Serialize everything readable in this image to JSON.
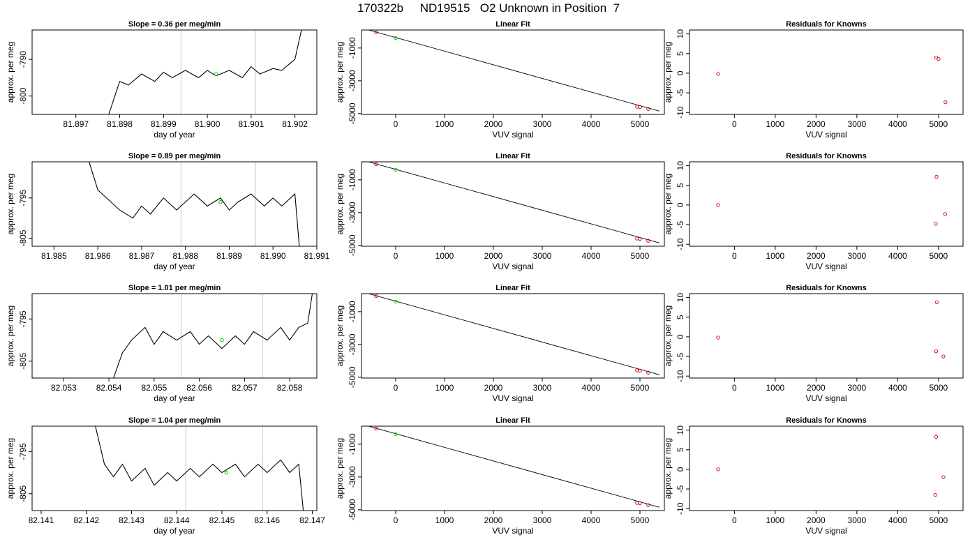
{
  "figure_title": "170322b     ND19515   O2 Unknown in Position  7",
  "chart_data": [
    {
      "type": "line",
      "title": "Slope =  0.36  per meg/min",
      "xlabel": "day of year",
      "ylabel": "approx. per meg",
      "xlim": [
        81.896,
        81.9025
      ],
      "ylim": [
        -805,
        -782
      ],
      "xticks": [
        "81.897",
        "81.898",
        "81.899",
        "81.900",
        "81.901",
        "81.902"
      ],
      "yticks": [
        "-790",
        "-800"
      ],
      "vlines": [
        81.8994,
        81.9011
      ],
      "marker": {
        "x": 81.9002,
        "y": -794,
        "color": "#00cc00"
      },
      "series": [
        {
          "color": "#000000",
          "x": [
            81.89775,
            81.898,
            81.8982,
            81.8985,
            81.8988,
            81.899,
            81.8992,
            81.8995,
            81.8998,
            81.9,
            81.9002,
            81.9005,
            81.9008,
            81.901,
            81.9012,
            81.9015,
            81.9017,
            81.9019,
            81.902,
            81.90215
          ],
          "y": [
            -805,
            -796,
            -797,
            -794,
            -796,
            -793.5,
            -795,
            -793,
            -795,
            -793,
            -794.5,
            -793,
            -795,
            -792,
            -794,
            -792.5,
            -793,
            -791,
            -790,
            -782
          ]
        }
      ]
    },
    {
      "type": "scatter",
      "title": "Linear Fit",
      "xlabel": "VUV signal",
      "ylabel": "approx. per meg",
      "xlim": [
        -700,
        5500
      ],
      "ylim": [
        -5050,
        100
      ],
      "xticks": [
        "0",
        "1000",
        "2000",
        "3000",
        "4000",
        "5000"
      ],
      "yticks": [
        "-1000",
        "-3000",
        "-5000"
      ],
      "fit_line": {
        "x": [
          -650,
          5400
        ],
        "y": [
          180,
          -4850
        ]
      },
      "series": [
        {
          "name": "",
          "color": "#cc0000",
          "x": [
            -400,
            4940,
            5000,
            5170
          ],
          "y": [
            -50,
            -4580,
            -4600,
            -4720
          ]
        },
        {
          "name": "",
          "color": "#00cc00",
          "x": [
            0
          ],
          "y": [
            -390
          ]
        }
      ]
    },
    {
      "type": "scatter",
      "title": "Residuals for Knowns",
      "xlabel": "VUV signal",
      "ylabel": "approx. per meg",
      "xlim": [
        -1100,
        5600
      ],
      "ylim": [
        -10.5,
        11
      ],
      "xticks": [
        "0",
        "1000",
        "2000",
        "3000",
        "4000",
        "5000"
      ],
      "yticks": [
        "-10",
        "-5",
        "0",
        "5",
        "10"
      ],
      "series": [
        {
          "color": "#cc0000",
          "x": [
            -400,
            4940,
            5000,
            5170
          ],
          "y": [
            -0.2,
            4,
            3.6,
            -7.4
          ]
        }
      ]
    },
    {
      "type": "line",
      "title": "Slope =  0.89  per meg/min",
      "xlabel": "day of year",
      "ylabel": "approx. per meg",
      "xlim": [
        81.9845,
        81.991
      ],
      "ylim": [
        -807,
        -786
      ],
      "xticks": [
        "81.985",
        "81.986",
        "81.987",
        "81.988",
        "81.989",
        "81.990",
        "81.991"
      ],
      "yticks": [
        "-795",
        "-805"
      ],
      "vlines": [
        81.9879,
        81.9896
      ],
      "marker": {
        "x": 81.9888,
        "y": -796,
        "color": "#00cc00"
      },
      "series": [
        {
          "color": "#000000",
          "x": [
            81.9858,
            81.986,
            81.9862,
            81.9865,
            81.9868,
            81.987,
            81.9872,
            81.9875,
            81.9878,
            81.988,
            81.9882,
            81.9885,
            81.9888,
            81.989,
            81.9892,
            81.9895,
            81.9898,
            81.99,
            81.9902,
            81.9905,
            81.9906
          ],
          "y": [
            -786,
            -793,
            -795,
            -798,
            -800,
            -797,
            -799,
            -795,
            -798,
            -796,
            -794,
            -797,
            -795,
            -798,
            -796,
            -794,
            -797,
            -795,
            -797,
            -794,
            -807
          ]
        }
      ]
    },
    {
      "type": "scatter",
      "title": "Linear Fit",
      "xlabel": "VUV signal",
      "ylabel": "approx. per meg",
      "xlim": [
        -700,
        5500
      ],
      "ylim": [
        -5050,
        100
      ],
      "xticks": [
        "0",
        "1000",
        "2000",
        "3000",
        "4000",
        "5000"
      ],
      "yticks": [
        "-1000",
        "-3000",
        "-5000"
      ],
      "fit_line": {
        "x": [
          -650,
          5400
        ],
        "y": [
          180,
          -4850
        ]
      },
      "series": [
        {
          "name": "",
          "color": "#cc0000",
          "x": [
            -400,
            4940,
            5000,
            5170
          ],
          "y": [
            -50,
            -4580,
            -4600,
            -4720
          ]
        },
        {
          "name": "",
          "color": "#00cc00",
          "x": [
            0
          ],
          "y": [
            -390
          ]
        }
      ]
    },
    {
      "type": "scatter",
      "title": "Residuals for Knowns",
      "xlabel": "VUV signal",
      "ylabel": "approx. per meg",
      "xlim": [
        -1100,
        5600
      ],
      "ylim": [
        -10.5,
        11
      ],
      "xticks": [
        "0",
        "1000",
        "2000",
        "3000",
        "4000",
        "5000"
      ],
      "yticks": [
        "-10",
        "-5",
        "0",
        "5",
        "10"
      ],
      "series": [
        {
          "color": "#cc0000",
          "x": [
            -400,
            4950,
            4930,
            5160
          ],
          "y": [
            0,
            7.2,
            -4.8,
            -2.3
          ]
        }
      ]
    },
    {
      "type": "line",
      "title": "Slope =  1.01  per meg/min",
      "xlabel": "day of year",
      "ylabel": "approx. per meg",
      "xlim": [
        82.0523,
        82.0586
      ],
      "ylim": [
        -809,
        -789
      ],
      "xticks": [
        "82.053",
        "82.054",
        "82.055",
        "82.056",
        "82.057",
        "82.058"
      ],
      "yticks": [
        "-795",
        "-805"
      ],
      "vlines": [
        82.0556,
        82.0574
      ],
      "marker": {
        "x": 82.0565,
        "y": -800,
        "color": "#00cc00"
      },
      "series": [
        {
          "color": "#000000",
          "x": [
            82.0541,
            82.0543,
            82.0545,
            82.0548,
            82.055,
            82.0552,
            82.0555,
            82.0558,
            82.056,
            82.0562,
            82.0565,
            82.0568,
            82.057,
            82.0572,
            82.0575,
            82.0578,
            82.058,
            82.0582,
            82.0584,
            82.0585
          ],
          "y": [
            -809,
            -803,
            -800,
            -797,
            -801,
            -798,
            -800,
            -798,
            -801,
            -799,
            -802,
            -799,
            -801,
            -798,
            -800,
            -797,
            -800,
            -797,
            -796,
            -789
          ]
        }
      ]
    },
    {
      "type": "scatter",
      "title": "Linear Fit",
      "xlabel": "VUV signal",
      "ylabel": "approx. per meg",
      "xlim": [
        -700,
        5500
      ],
      "ylim": [
        -5050,
        100
      ],
      "xticks": [
        "0",
        "1000",
        "2000",
        "3000",
        "4000",
        "5000"
      ],
      "yticks": [
        "-1000",
        "-3000",
        "-5000"
      ],
      "fit_line": {
        "x": [
          -650,
          5400
        ],
        "y": [
          180,
          -4850
        ]
      },
      "series": [
        {
          "name": "",
          "color": "#cc0000",
          "x": [
            -400,
            4940,
            5000,
            5170
          ],
          "y": [
            -50,
            -4580,
            -4600,
            -4720
          ]
        },
        {
          "name": "",
          "color": "#00cc00",
          "x": [
            0
          ],
          "y": [
            -390
          ]
        }
      ]
    },
    {
      "type": "scatter",
      "title": "Residuals for Knowns",
      "xlabel": "VUV signal",
      "ylabel": "approx. per meg",
      "xlim": [
        -1100,
        5600
      ],
      "ylim": [
        -10.5,
        11
      ],
      "xticks": [
        "0",
        "1000",
        "2000",
        "3000",
        "4000",
        "5000"
      ],
      "yticks": [
        "-10",
        "-5",
        "0",
        "5",
        "10"
      ],
      "series": [
        {
          "color": "#cc0000",
          "x": [
            -400,
            4960,
            4940,
            5120
          ],
          "y": [
            -0.2,
            8.8,
            -3.7,
            -5
          ]
        }
      ]
    },
    {
      "type": "line",
      "title": "Slope =  1.04  per meg/min",
      "xlabel": "day of year",
      "ylabel": "approx. per meg",
      "xlim": [
        82.1408,
        82.1471
      ],
      "ylim": [
        -809,
        -789
      ],
      "xticks": [
        "82.141",
        "82.142",
        "82.143",
        "82.144",
        "82.145",
        "82.146",
        "82.147"
      ],
      "yticks": [
        "-795",
        "-805"
      ],
      "vlines": [
        82.1442,
        82.1459
      ],
      "marker": {
        "x": 82.1451,
        "y": -800,
        "color": "#00cc00"
      },
      "series": [
        {
          "color": "#000000",
          "x": [
            82.1422,
            82.1424,
            82.1426,
            82.1428,
            82.143,
            82.1433,
            82.1435,
            82.1438,
            82.144,
            82.1443,
            82.1445,
            82.1448,
            82.145,
            82.1453,
            82.1455,
            82.1458,
            82.146,
            82.1463,
            82.1465,
            82.1467,
            82.1468
          ],
          "y": [
            -789,
            -798,
            -801,
            -798,
            -802,
            -799,
            -803,
            -800,
            -802,
            -799,
            -801,
            -798,
            -800,
            -798,
            -801,
            -798,
            -800,
            -797,
            -800,
            -798,
            -809
          ]
        }
      ]
    },
    {
      "type": "scatter",
      "title": "Linear Fit",
      "xlabel": "VUV signal",
      "ylabel": "approx. per meg",
      "xlim": [
        -700,
        5500
      ],
      "ylim": [
        -5050,
        100
      ],
      "xticks": [
        "0",
        "1000",
        "2000",
        "3000",
        "4000",
        "5000"
      ],
      "yticks": [
        "-1000",
        "-3000",
        "-5000"
      ],
      "fit_line": {
        "x": [
          -650,
          5400
        ],
        "y": [
          180,
          -4850
        ]
      },
      "series": [
        {
          "name": "",
          "color": "#cc0000",
          "x": [
            -400,
            4940,
            5000,
            5170
          ],
          "y": [
            -50,
            -4580,
            -4600,
            -4720
          ]
        },
        {
          "name": "",
          "color": "#00cc00",
          "x": [
            0
          ],
          "y": [
            -390
          ]
        }
      ]
    },
    {
      "type": "scatter",
      "title": "Residuals for Knowns",
      "xlabel": "VUV signal",
      "ylabel": "approx. per meg",
      "xlim": [
        -1100,
        5600
      ],
      "ylim": [
        -10.5,
        11
      ],
      "xticks": [
        "0",
        "1000",
        "2000",
        "3000",
        "4000",
        "5000"
      ],
      "yticks": [
        "-10",
        "-5",
        "0",
        "5",
        "10"
      ],
      "series": [
        {
          "color": "#cc0000",
          "x": [
            -400,
            4940,
            4920,
            5120
          ],
          "y": [
            0,
            8.3,
            -6.5,
            -2
          ]
        }
      ]
    }
  ]
}
